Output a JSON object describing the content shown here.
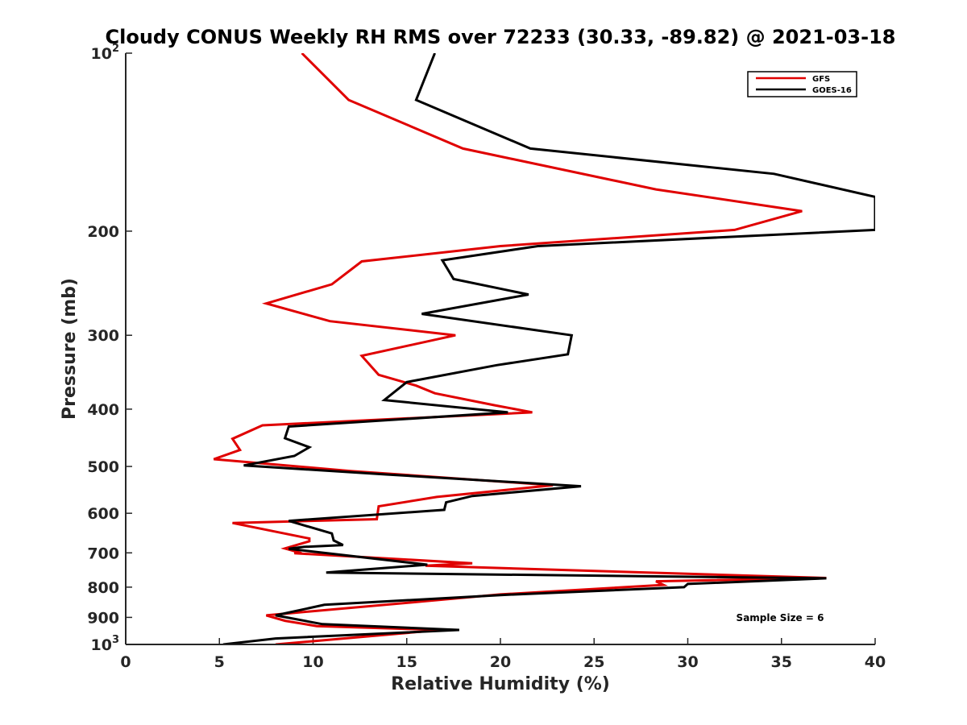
{
  "chart_data": {
    "type": "line",
    "title": "Cloudy CONUS Weekly RH RMS over 72233 (30.33, -89.82) @ 2021-03-18",
    "xlabel": "Relative Humidity (%)",
    "ylabel": "Pressure (mb)",
    "xlim": [
      0,
      40
    ],
    "ylim": [
      100,
      1000
    ],
    "yscale": "log",
    "y_reversed": true,
    "x_ticks": [
      "0",
      "5",
      "10",
      "15",
      "20",
      "25",
      "30",
      "35",
      "40"
    ],
    "y_ticks": [
      {
        "value": 100,
        "base": "10",
        "exp": "2"
      },
      {
        "value": 200,
        "label": "200"
      },
      {
        "value": 300,
        "label": "300"
      },
      {
        "value": 400,
        "label": "400"
      },
      {
        "value": 500,
        "label": "500"
      },
      {
        "value": 600,
        "label": "600"
      },
      {
        "value": 700,
        "label": "700"
      },
      {
        "value": 800,
        "label": "800"
      },
      {
        "value": 900,
        "label": "900"
      },
      {
        "value": 1000,
        "base": "10",
        "exp": "3"
      }
    ],
    "legend_position": "top-right",
    "annotation": "Sample Size = 6",
    "series": [
      {
        "name": "GFS",
        "color": "#e00000",
        "points": [
          [
            9.4,
            100
          ],
          [
            11.9,
            120
          ],
          [
            18.0,
            145
          ],
          [
            28.3,
            170
          ],
          [
            36.1,
            185
          ],
          [
            32.5,
            199
          ],
          [
            20.0,
            212
          ],
          [
            12.6,
            225
          ],
          [
            11.0,
            246
          ],
          [
            7.5,
            265
          ],
          [
            10.9,
            284
          ],
          [
            17.6,
            300
          ],
          [
            12.6,
            325
          ],
          [
            13.5,
            350
          ],
          [
            15.5,
            365
          ],
          [
            16.5,
            376
          ],
          [
            19.7,
            394
          ],
          [
            21.7,
            405
          ],
          [
            7.3,
            426
          ],
          [
            5.7,
            449
          ],
          [
            6.1,
            469
          ],
          [
            4.7,
            486
          ],
          [
            12.0,
            509
          ],
          [
            22.8,
            538
          ],
          [
            16.6,
            563
          ],
          [
            13.5,
            584
          ],
          [
            13.4,
            614
          ],
          [
            5.7,
            623
          ],
          [
            9.8,
            662
          ],
          [
            9.8,
            669
          ],
          [
            8.5,
            688
          ],
          [
            9.2,
            698
          ],
          [
            9.0,
            701
          ],
          [
            18.5,
            729
          ],
          [
            16.0,
            736
          ],
          [
            37.4,
            772
          ],
          [
            28.3,
            782
          ],
          [
            28.7,
            793
          ],
          [
            20.0,
            823
          ],
          [
            16.0,
            845
          ],
          [
            7.5,
            893
          ],
          [
            8.5,
            912
          ],
          [
            10.2,
            931
          ],
          [
            16.8,
            945
          ],
          [
            8.0,
            1000
          ]
        ]
      },
      {
        "name": "GOES-16",
        "color": "#000000",
        "points": [
          [
            16.5,
            100
          ],
          [
            15.5,
            120
          ],
          [
            21.6,
            145
          ],
          [
            34.6,
            160
          ],
          [
            40.0,
            175
          ],
          [
            40.0,
            199
          ],
          [
            22.0,
            212
          ],
          [
            16.9,
            224
          ],
          [
            17.5,
            241
          ],
          [
            21.5,
            256
          ],
          [
            15.8,
            276
          ],
          [
            23.8,
            300
          ],
          [
            23.6,
            323
          ],
          [
            19.8,
            337
          ],
          [
            15.0,
            360
          ],
          [
            13.8,
            386
          ],
          [
            20.4,
            405
          ],
          [
            8.7,
            428
          ],
          [
            8.5,
            448
          ],
          [
            9.8,
            464
          ],
          [
            9.0,
            480
          ],
          [
            6.3,
            498
          ],
          [
            14.0,
            516
          ],
          [
            24.3,
            540
          ],
          [
            18.5,
            561
          ],
          [
            17.1,
            575
          ],
          [
            17.0,
            592
          ],
          [
            8.7,
            618
          ],
          [
            11.0,
            649
          ],
          [
            11.1,
            667
          ],
          [
            11.6,
            679
          ],
          [
            9.5,
            684
          ],
          [
            8.7,
            689
          ],
          [
            16.1,
            733
          ],
          [
            10.7,
            756
          ],
          [
            37.4,
            773
          ],
          [
            30.0,
            790
          ],
          [
            29.8,
            800
          ],
          [
            20.0,
            825
          ],
          [
            10.6,
            857
          ],
          [
            8.0,
            893
          ],
          [
            10.5,
            924
          ],
          [
            17.8,
            945
          ],
          [
            8.0,
            977
          ],
          [
            5.2,
            1000
          ]
        ]
      }
    ]
  }
}
